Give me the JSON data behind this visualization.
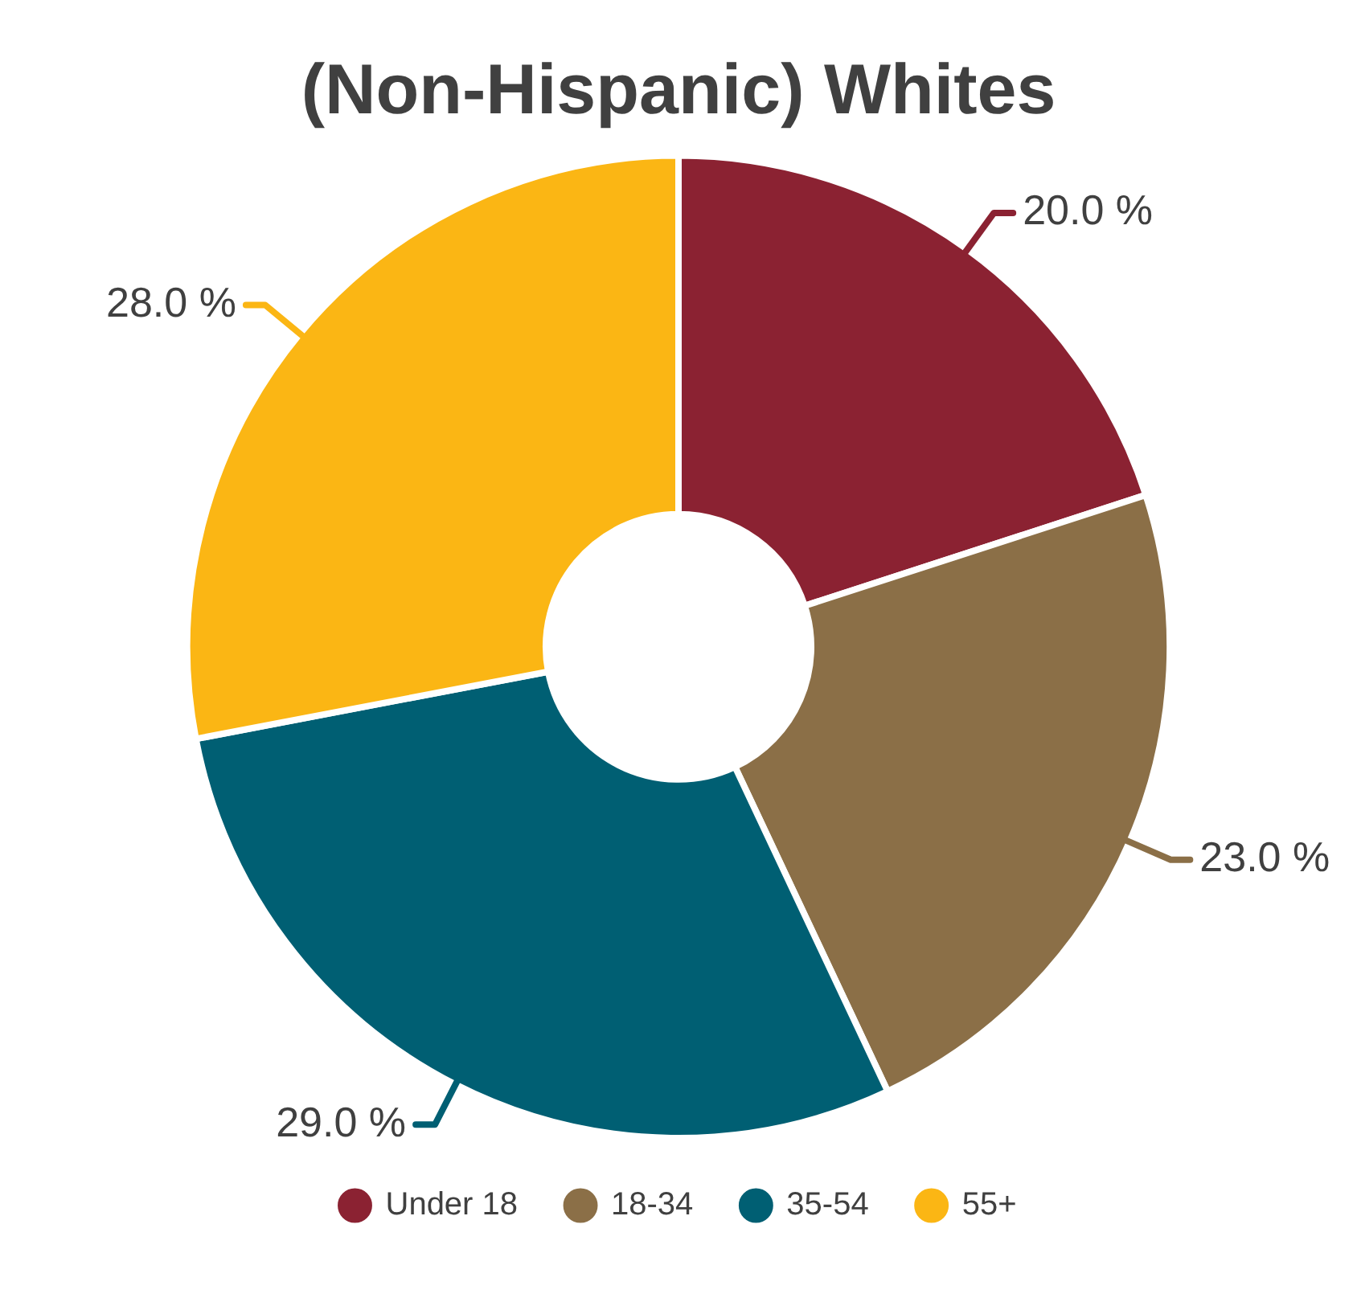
{
  "chart_data": {
    "type": "donut",
    "title": "(Non-Hispanic) Whites",
    "categories": [
      "Under 18",
      "18-34",
      "35-54",
      "55+"
    ],
    "values": [
      20,
      23,
      29,
      28
    ],
    "colors": [
      "#8b2232",
      "#8b6f47",
      "#005f73",
      "#fbb614"
    ],
    "value_labels": [
      "20.0 %",
      "23.0 %",
      "29.0 %",
      "28.0 %"
    ],
    "legend": "bottom"
  }
}
